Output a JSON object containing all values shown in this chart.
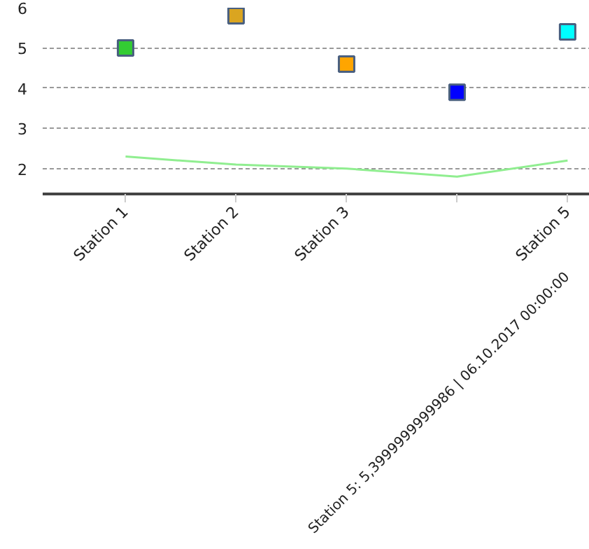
{
  "chart_data": {
    "type": "scatter",
    "categories": [
      "Station 1",
      "Station 2",
      "Station 3",
      null,
      "Station 5"
    ],
    "series": [
      {
        "colors": [
          "#33cc33",
          "#daa520",
          "#ffa500",
          "#0000ff",
          "#00ffff"
        ],
        "values": [
          5.0,
          5.8,
          4.6,
          3.9,
          5.4
        ],
        "marker": "square"
      },
      {
        "type": "line",
        "color": "#90ee90",
        "values": [
          2.3,
          2.1,
          2.0,
          1.8,
          2.2
        ]
      }
    ],
    "ylim": [
      1.37,
      6
    ],
    "yticks": [
      2,
      3,
      4,
      5,
      6
    ],
    "grid": "y",
    "annotations": [
      "Station 5: 5,3999999999986 | 06.10.2017 00:00:00"
    ]
  }
}
